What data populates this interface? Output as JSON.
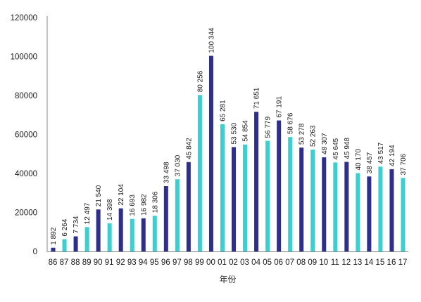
{
  "chart_data": {
    "type": "bar",
    "title": "",
    "xlabel": "年份",
    "ylabel": "",
    "ylim": [
      0,
      120000
    ],
    "yticks": [
      0,
      20000,
      40000,
      60000,
      80000,
      100000,
      120000
    ],
    "grid": false,
    "legend": "none",
    "categories": [
      "86",
      "87",
      "88",
      "89",
      "90",
      "91",
      "92",
      "93",
      "94",
      "95",
      "96",
      "97",
      "98",
      "99",
      "00",
      "01",
      "02",
      "03",
      "04",
      "05",
      "06",
      "07",
      "08",
      "09",
      "10",
      "11",
      "12",
      "13",
      "14",
      "15",
      "16",
      "17"
    ],
    "values": [
      1892,
      6264,
      7734,
      12497,
      21540,
      14398,
      22104,
      16693,
      16982,
      18306,
      33498,
      37030,
      45842,
      80256,
      100344,
      65281,
      53530,
      54854,
      71651,
      56779,
      67191,
      58676,
      53278,
      52263,
      48307,
      45645,
      45948,
      40170,
      38457,
      43517,
      42194,
      37706
    ],
    "value_labels": [
      "1 892",
      "6 264",
      "7 734",
      "12 497",
      "21 540",
      "14 398",
      "22 104",
      "16 693",
      "16 982",
      "18 306",
      "33 498",
      "37 030",
      "45 842",
      "80 256",
      "100 344",
      "65 281",
      "53 530",
      "54 854",
      "71 651",
      "56 779",
      "67 191",
      "58 676",
      "53 278",
      "52 263",
      "48 307",
      "45 645",
      "45 948",
      "40 170",
      "38 457",
      "43 517",
      "42 194",
      "37 706"
    ],
    "bar_colors": [
      "#2e2f8c",
      "#3ccfd0",
      "#2e2f8c",
      "#3ccfd0",
      "#2e2f8c",
      "#3ccfd0",
      "#2e2f8c",
      "#3ccfd0",
      "#2e2f8c",
      "#3ccfd0",
      "#2e2f8c",
      "#3ccfd0",
      "#2e2f8c",
      "#3ccfd0",
      "#2e2f8c",
      "#3ccfd0",
      "#2e2f8c",
      "#3ccfd0",
      "#2e2f8c",
      "#3ccfd0",
      "#2e2f8c",
      "#3ccfd0",
      "#2e2f8c",
      "#3ccfd0",
      "#2e2f8c",
      "#3ccfd0",
      "#2e2f8c",
      "#3ccfd0",
      "#2e2f8c",
      "#3ccfd0",
      "#2e2f8c",
      "#3ccfd0"
    ],
    "colors": {
      "dark": "#2e2f8c",
      "light": "#3ccfd0",
      "axis": "#888888"
    }
  }
}
